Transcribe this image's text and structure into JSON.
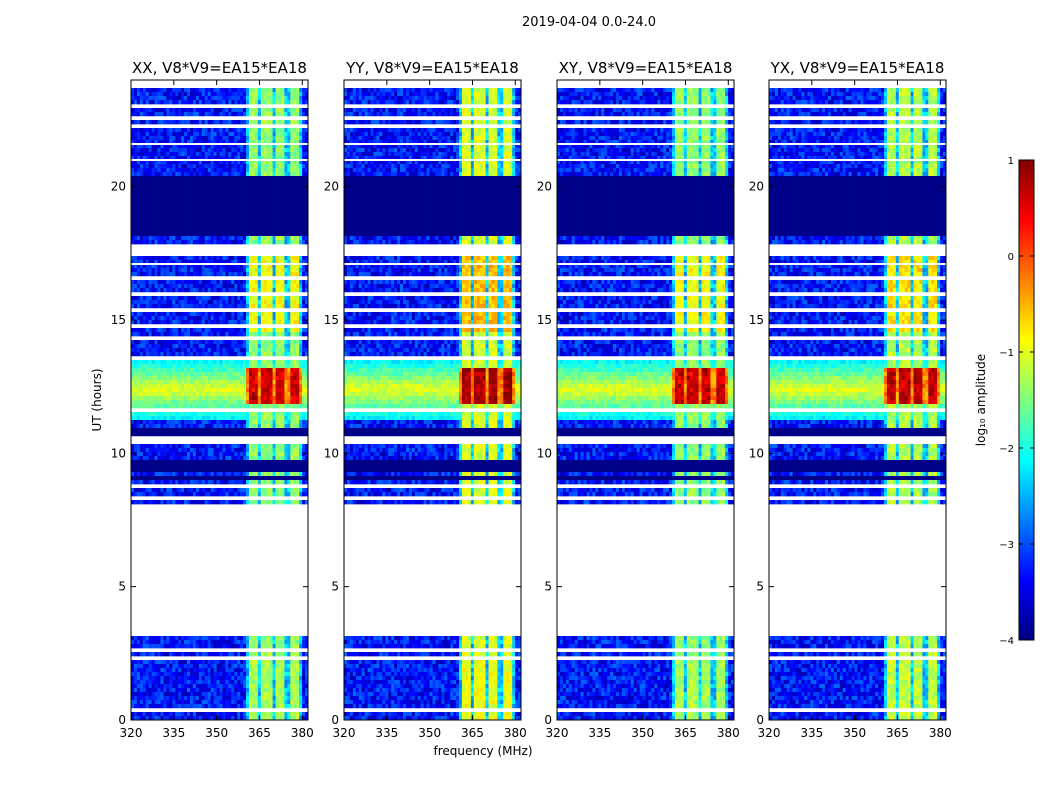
{
  "figure_title": "2019-04-04 0.0-24.0",
  "colors": {
    "jet_stops": [
      "#00007f",
      "#0000ff",
      "#007fff",
      "#00ffff",
      "#7fff7f",
      "#ffff00",
      "#ff7f00",
      "#ff0000",
      "#7f0000"
    ]
  },
  "chart_data": {
    "type": "heatmap",
    "panels": [
      {
        "title": "XX, V8*V9=EA15*EA18",
        "pol": "XX"
      },
      {
        "title": "YY, V8*V9=EA15*EA18",
        "pol": "YY"
      },
      {
        "title": "XY, V8*V9=EA15*EA18",
        "pol": "XY"
      },
      {
        "title": "YX, V8*V9=EA15*EA18",
        "pol": "YX"
      }
    ],
    "xlabel": "frequency (MHz)",
    "ylabel": "UT (hours)",
    "xlim": [
      320,
      382
    ],
    "ylim": [
      0,
      24
    ],
    "xticks": [
      320,
      335,
      350,
      365,
      380
    ],
    "yticks": [
      0,
      5,
      10,
      15,
      20
    ],
    "colorbar": {
      "label": "log₁₀ amplitude",
      "range": [
        -4,
        1
      ],
      "ticks": [
        1,
        0,
        -1,
        -2,
        -3,
        -4
      ]
    },
    "data_gaps_hours": [
      [
        2.6,
        2.7
      ],
      [
        3.1,
        8.1
      ],
      [
        8.7,
        8.8
      ],
      [
        17.4,
        17.9
      ],
      [
        22.2,
        22.4
      ],
      [
        23.7,
        24.0
      ]
    ],
    "rfi_channels_mhz": [
      362.5,
      367.5,
      372.5,
      377.5
    ],
    "rfi_burst_hours": [
      11.8,
      13.2
    ],
    "peak_log_amplitude": 1
  }
}
